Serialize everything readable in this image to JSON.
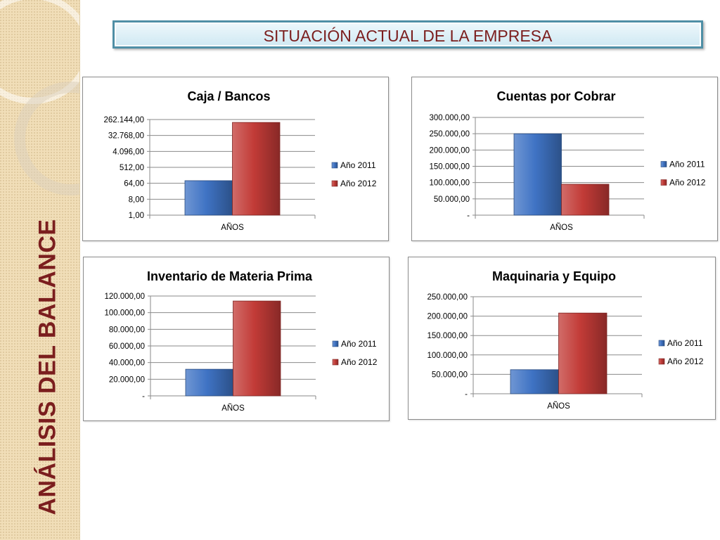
{
  "page": {
    "title": "SITUACIÓN ACTUAL DE LA EMPRESA",
    "sidebar_title": "ANÁLISIS DEL BALANCE"
  },
  "colors": {
    "series_2011": "#3f73c4",
    "series_2012": "#c23b37",
    "title_text": "#7b1e1e",
    "sidebar_bg": "#f1deb8"
  },
  "chart_data": [
    {
      "id": "caja-bancos",
      "type": "bar",
      "title": "Caja / Bancos",
      "categories": [
        "AÑOS"
      ],
      "series": [
        {
          "name": "Año 2011",
          "values": [
            90
          ]
        },
        {
          "name": "Año 2012",
          "values": [
            180000
          ]
        }
      ],
      "scale": "log",
      "yticks": [
        "1,00",
        "8,00",
        "64,00",
        "512,00",
        "4.096,00",
        "32.768,00",
        "262.144,00"
      ],
      "ytick_values": [
        1,
        8,
        64,
        512,
        4096,
        32768,
        262144
      ],
      "ylim": [
        1,
        262144
      ],
      "legend": "right",
      "grid": true
    },
    {
      "id": "cuentas-por-cobrar",
      "type": "bar",
      "title": "Cuentas por Cobrar",
      "categories": [
        "AÑOS"
      ],
      "series": [
        {
          "name": "Año 2011",
          "values": [
            250000
          ]
        },
        {
          "name": "Año 2012",
          "values": [
            95000
          ]
        }
      ],
      "scale": "linear",
      "yticks": [
        "-",
        "50.000,00",
        "100.000,00",
        "150.000,00",
        "200.000,00",
        "250.000,00",
        "300.000,00"
      ],
      "ytick_values": [
        0,
        50000,
        100000,
        150000,
        200000,
        250000,
        300000
      ],
      "ylim": [
        0,
        300000
      ],
      "legend": "right",
      "grid": true
    },
    {
      "id": "inventario-materia-prima",
      "type": "bar",
      "title": "Inventario de Materia Prima",
      "categories": [
        "AÑOS"
      ],
      "series": [
        {
          "name": "Año 2011",
          "values": [
            32000
          ]
        },
        {
          "name": "Año 2012",
          "values": [
            114000
          ]
        }
      ],
      "scale": "linear",
      "yticks": [
        "-",
        "20.000,00",
        "40.000,00",
        "60.000,00",
        "80.000,00",
        "100.000,00",
        "120.000,00"
      ],
      "ytick_values": [
        0,
        20000,
        40000,
        60000,
        80000,
        100000,
        120000
      ],
      "ylim": [
        0,
        120000
      ],
      "legend": "right",
      "grid": true
    },
    {
      "id": "maquinaria-equipo",
      "type": "bar",
      "title": "Maquinaria y Equipo",
      "categories": [
        "AÑOS"
      ],
      "series": [
        {
          "name": "Año 2011",
          "values": [
            62000
          ]
        },
        {
          "name": "Año 2012",
          "values": [
            208000
          ]
        }
      ],
      "scale": "linear",
      "yticks": [
        "-",
        "50.000,00",
        "100.000,00",
        "150.000,00",
        "200.000,00",
        "250.000,00"
      ],
      "ytick_values": [
        0,
        50000,
        100000,
        150000,
        200000,
        250000
      ],
      "ylim": [
        0,
        250000
      ],
      "legend": "right",
      "grid": true
    }
  ]
}
